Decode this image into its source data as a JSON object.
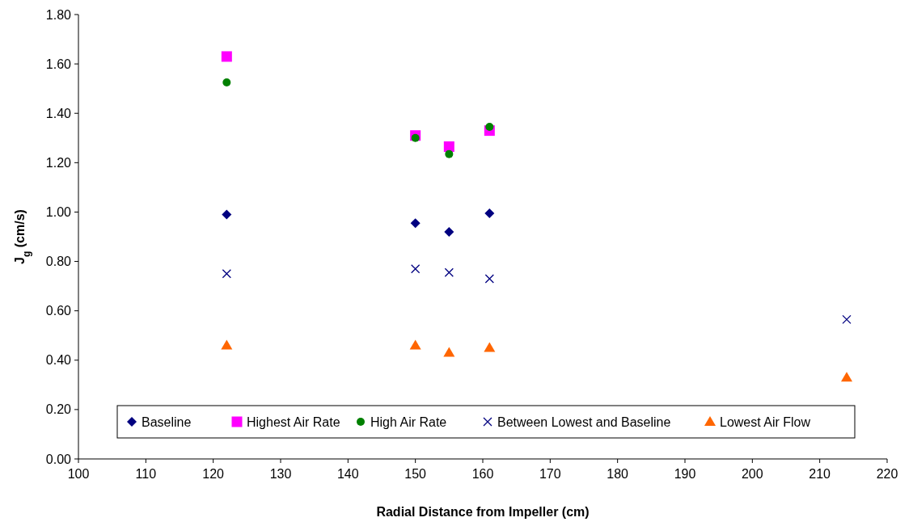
{
  "chart_data": {
    "type": "scatter",
    "xlabel": "Radial Distance from Impeller (cm)",
    "ylabel": "J$_{g}$ (cm/s)",
    "xlim": [
      100,
      220
    ],
    "xticks": [
      100,
      110,
      120,
      130,
      140,
      150,
      160,
      170,
      180,
      190,
      200,
      210,
      220
    ],
    "ylim": [
      0,
      1.8
    ],
    "yticks": [
      {
        "value": 0,
        "label": "0.00"
      },
      {
        "value": 0.2,
        "label": "0.20"
      },
      {
        "value": 0.4,
        "label": "0.40"
      },
      {
        "value": 0.6,
        "label": "0.60"
      },
      {
        "value": 0.8,
        "label": "0.80"
      },
      {
        "value": 1,
        "label": "1.00"
      },
      {
        "value": 1.2,
        "label": "1.20"
      },
      {
        "value": 1.4,
        "label": "1.40"
      },
      {
        "value": 1.6,
        "label": "1.60"
      },
      {
        "value": 1.8,
        "label": "1.80"
      }
    ],
    "grid": false,
    "legend": "bottom",
    "series": [
      {
        "name": "Baseline",
        "color": "#000080",
        "marker": "diamond",
        "x": [
          122,
          150,
          155,
          161
        ],
        "values": [
          0.99,
          0.955,
          0.92,
          0.995
        ]
      },
      {
        "name": "Highest Air Rate",
        "color": "#ff00ff",
        "marker": "square",
        "x": [
          122,
          150,
          155,
          161
        ],
        "values": [
          1.63,
          1.31,
          1.265,
          1.33
        ]
      },
      {
        "name": "High Air Rate",
        "color": "#008000",
        "marker": "circle",
        "x": [
          122,
          150,
          155,
          161
        ],
        "values": [
          1.525,
          1.3,
          1.235,
          1.345
        ]
      },
      {
        "name": "Between Lowest and Baseline",
        "color": "#000080",
        "marker": "cross",
        "x": [
          122,
          150,
          155,
          161,
          214
        ],
        "values": [
          0.75,
          0.77,
          0.755,
          0.73,
          0.565
        ]
      },
      {
        "name": "Lowest Air Flow",
        "color": "#ff6600",
        "marker": "triangle",
        "x": [
          122,
          150,
          155,
          161,
          214
        ],
        "values": [
          0.46,
          0.46,
          0.43,
          0.45,
          0.33
        ]
      }
    ]
  }
}
